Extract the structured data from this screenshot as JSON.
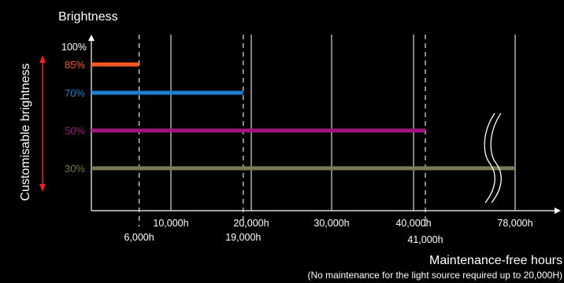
{
  "chart_data": {
    "type": "bar",
    "orientation": "horizontal",
    "y_axis_label": "Brightness",
    "side_label": "Customisable brightness",
    "x_axis_label": "Maintenance-free hours",
    "note": "(No maintenance for the light source required up to 20,000H)",
    "y_top_label": "100%",
    "axis_break": true,
    "grid_ticks": [
      {
        "value": 10000,
        "label": "10,000h",
        "style": "solid"
      },
      {
        "value": 20000,
        "label": "20,000h",
        "style": "solid"
      },
      {
        "value": 30000,
        "label": "30,000h",
        "style": "solid"
      },
      {
        "value": 40000,
        "label": "40,000h",
        "style": "solid"
      },
      {
        "value": 78000,
        "label": "78,000h",
        "style": "solid"
      }
    ],
    "dashed_ticks": [
      {
        "value": 6000,
        "label": "6,000h"
      },
      {
        "value": 19000,
        "label": "19,000h"
      },
      {
        "value": 41000,
        "label": "41,000h"
      }
    ],
    "series": [
      {
        "brightness": "85%",
        "hours": 6000,
        "color": "#ff5a1f"
      },
      {
        "brightness": "70%",
        "hours": 19000,
        "color": "#1e7fcf"
      },
      {
        "brightness": "50%",
        "hours": 41000,
        "color": "#a0167e"
      },
      {
        "brightness": "30%",
        "hours": 78000,
        "color": "#7b7a52"
      }
    ],
    "arrow_color": "#e8202a"
  }
}
